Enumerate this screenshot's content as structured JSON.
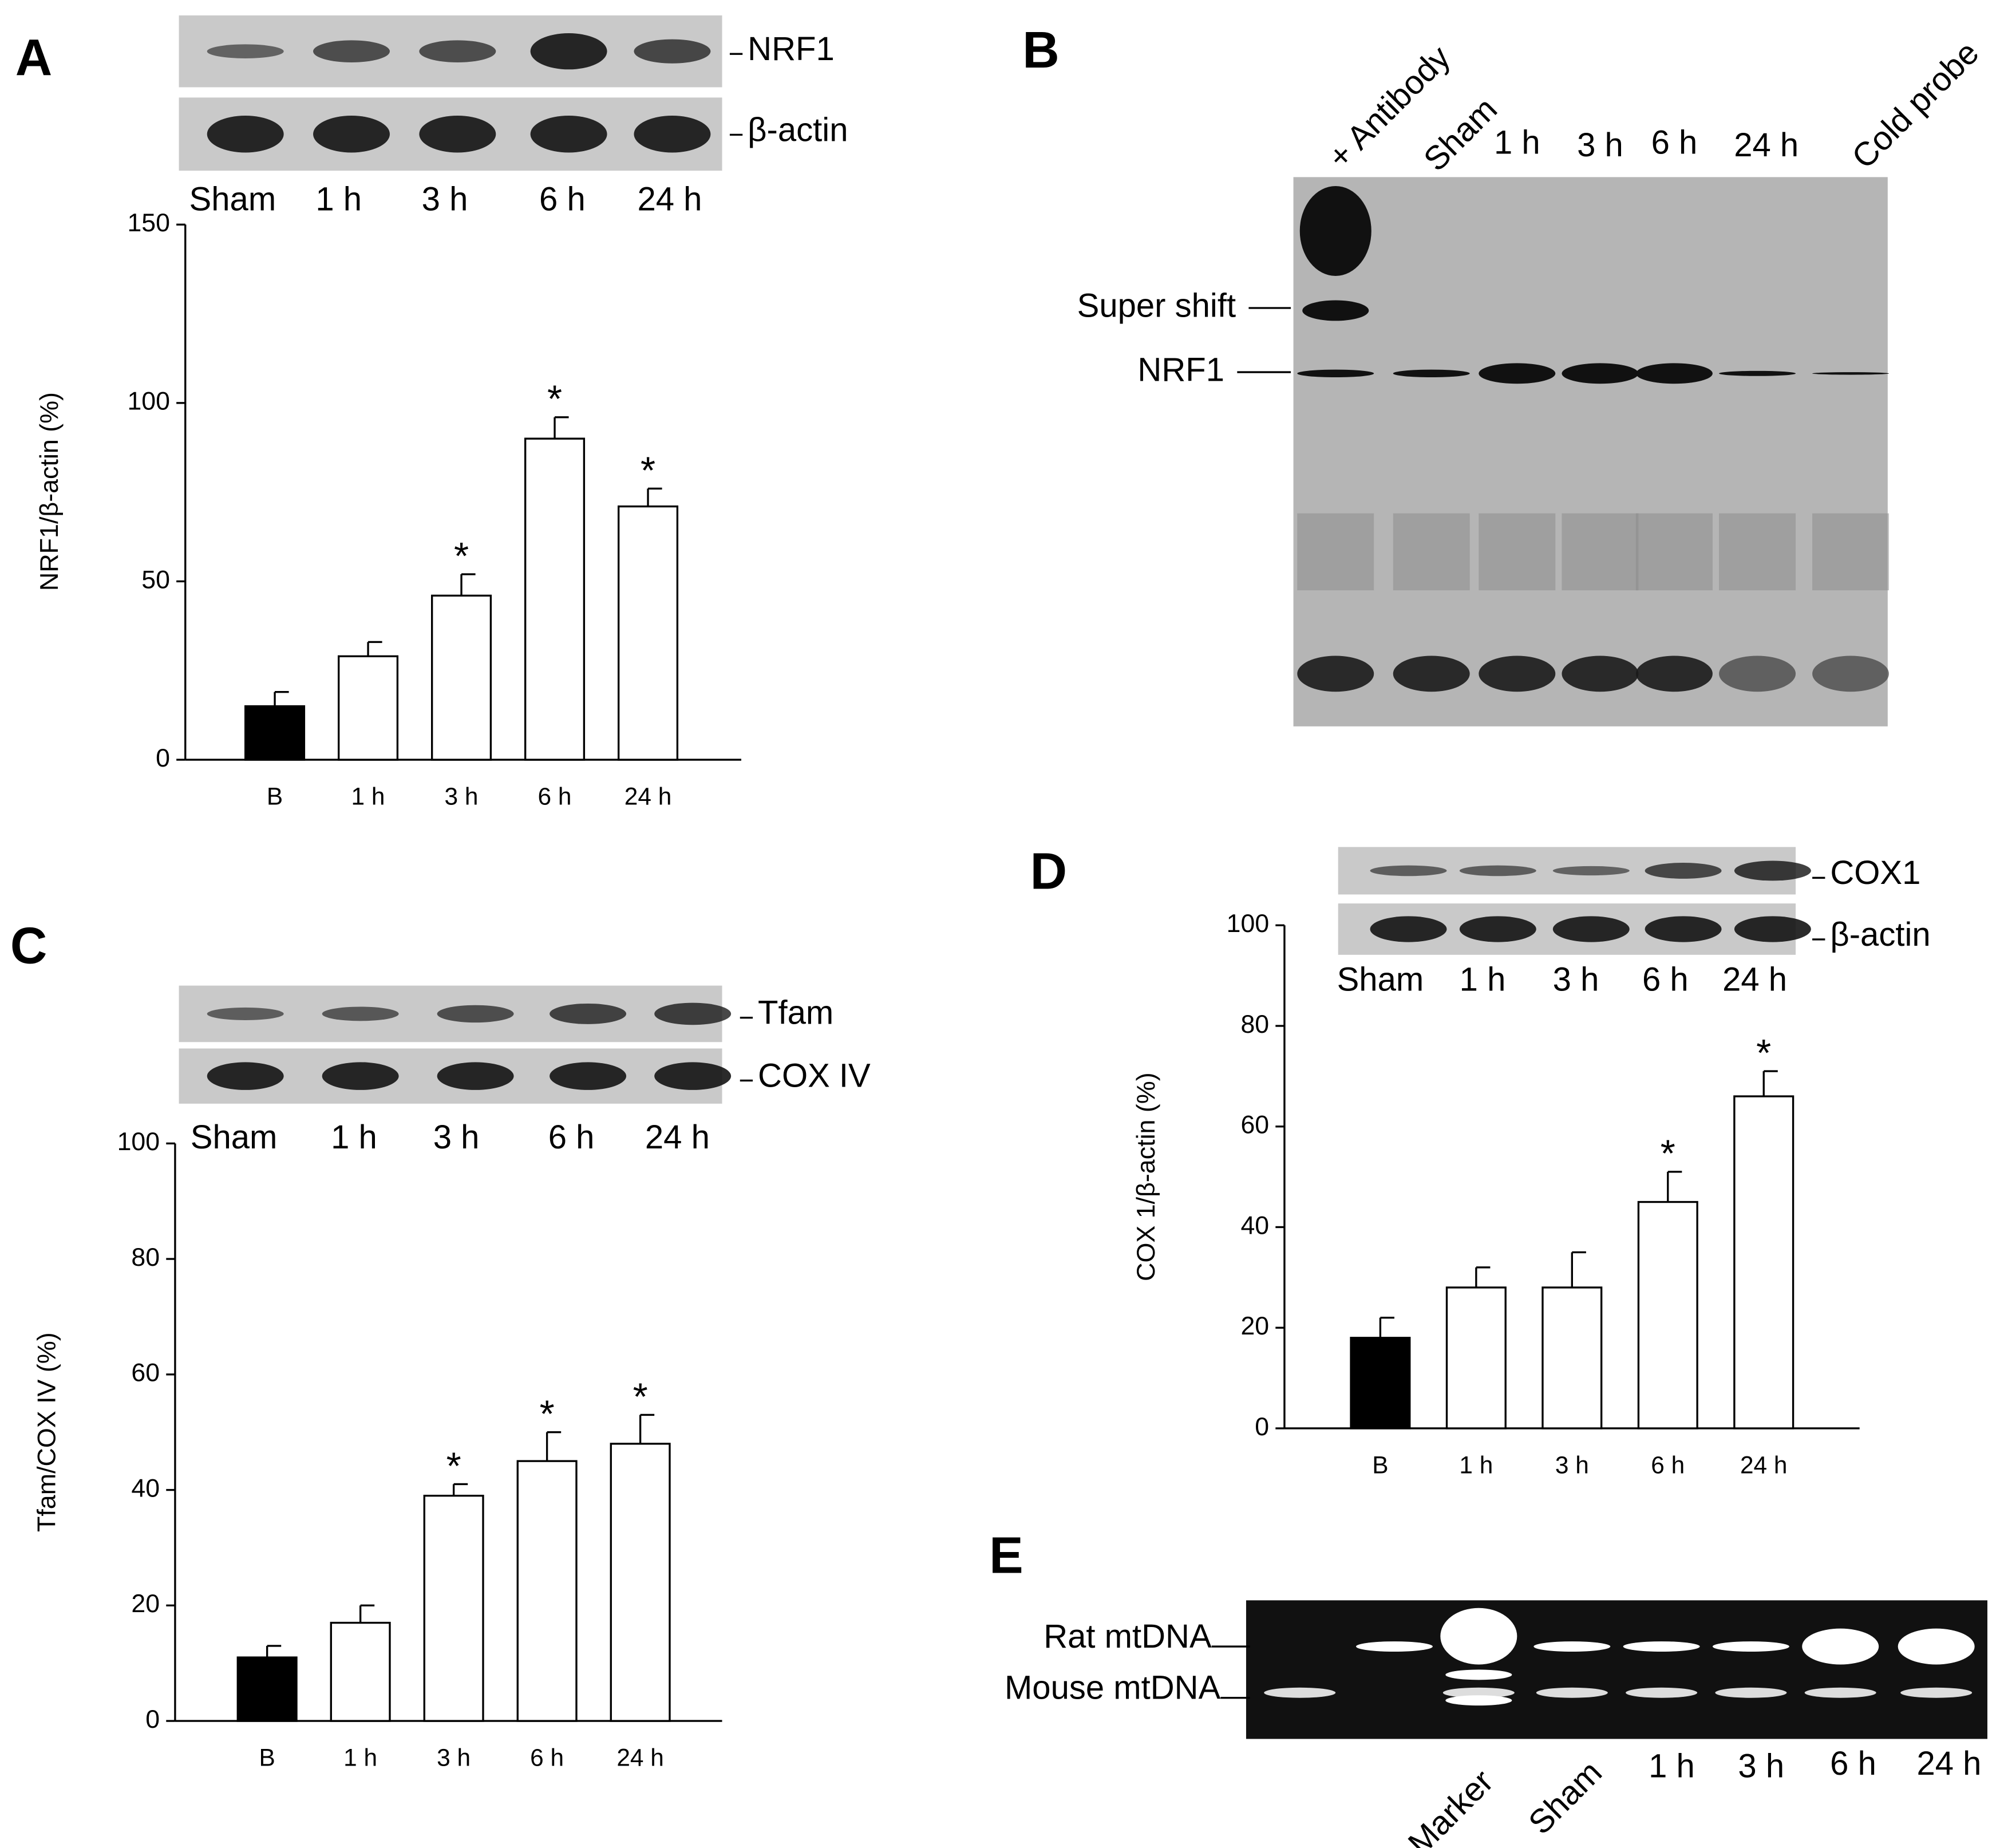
{
  "chart_data": [
    {
      "type": "bar",
      "panel": "A",
      "blot_labels": [
        "NRF1",
        "β-actin"
      ],
      "lanes": [
        "Sham",
        "1 h",
        "3 h",
        "6 h",
        "24 h"
      ],
      "y_label": "NRF1/β-actin (%)",
      "categories": [
        "B",
        "1 h",
        "3 h",
        "6 h",
        "24 h"
      ],
      "values": [
        15,
        29,
        46,
        90,
        71
      ],
      "errors": [
        4,
        4,
        6,
        6,
        5
      ],
      "bar_colors": [
        "#000000",
        "#ffffff",
        "#ffffff",
        "#ffffff",
        "#ffffff"
      ],
      "significance": [
        null,
        null,
        "*",
        "*",
        "*"
      ],
      "ylim": [
        0,
        150
      ],
      "yticks": [
        0,
        50,
        100,
        150
      ],
      "grid": false
    },
    {
      "type": "bar",
      "panel": "C",
      "blot_labels": [
        "Tfam",
        "COX IV"
      ],
      "lanes": [
        "Sham",
        "1 h",
        "3 h",
        "6 h",
        "24 h"
      ],
      "y_label": "Tfam/COX IV (%)",
      "categories": [
        "B",
        "1 h",
        "3 h",
        "6 h",
        "24 h"
      ],
      "values": [
        11,
        17,
        39,
        45,
        48
      ],
      "errors": [
        2,
        3,
        2,
        5,
        5
      ],
      "bar_colors": [
        "#000000",
        "#ffffff",
        "#ffffff",
        "#ffffff",
        "#ffffff"
      ],
      "significance": [
        null,
        null,
        "*",
        "*",
        "*"
      ],
      "ylim": [
        0,
        100
      ],
      "yticks": [
        0,
        20,
        40,
        60,
        80,
        100
      ],
      "grid": false
    },
    {
      "type": "bar",
      "panel": "D",
      "blot_labels": [
        "COX1",
        "β-actin"
      ],
      "lanes": [
        "Sham",
        "1 h",
        "3 h",
        "6 h",
        "24 h"
      ],
      "y_label": "COX 1/β-actin (%)",
      "categories": [
        "B",
        "1 h",
        "3 h",
        "6 h",
        "24 h"
      ],
      "values": [
        18,
        28,
        28,
        45,
        66
      ],
      "errors": [
        4,
        4,
        7,
        6,
        5
      ],
      "bar_colors": [
        "#000000",
        "#ffffff",
        "#ffffff",
        "#ffffff",
        "#ffffff"
      ],
      "significance": [
        null,
        null,
        null,
        "*",
        "*"
      ],
      "ylim": [
        0,
        100
      ],
      "yticks": [
        0,
        20,
        40,
        60,
        80,
        100
      ],
      "grid": false
    }
  ],
  "emsa": {
    "panel": "B",
    "lanes": [
      "+ Antibody",
      "Sham",
      "1 h",
      "3 h",
      "6 h",
      "24 h",
      "Cold probe"
    ],
    "band_labels": [
      "Super shift",
      "NRF1"
    ]
  },
  "gel": {
    "panel": "E",
    "lanes": [
      "Marker",
      "Sham",
      "1 h",
      "3 h",
      "6 h",
      "24 h"
    ],
    "band_labels": [
      "Rat mtDNA",
      "Mouse mtDNA"
    ]
  }
}
